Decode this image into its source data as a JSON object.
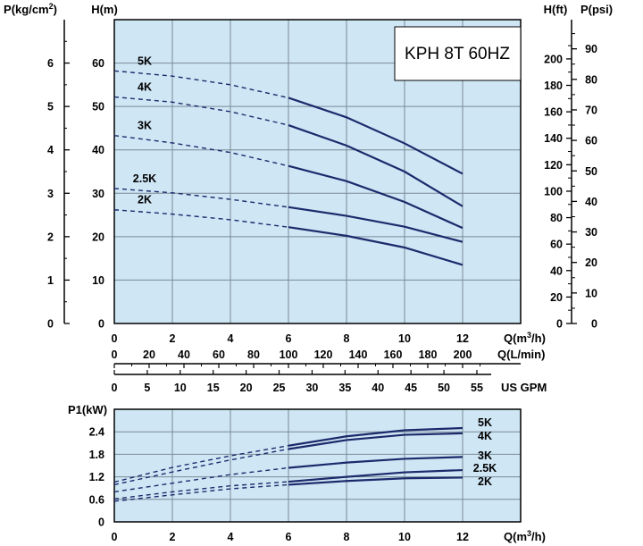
{
  "chart_data": [
    {
      "type": "line",
      "title": "KPH 8T 60HZ",
      "grid": true,
      "x": {
        "label": "Q(m³/h)",
        "range": [
          0,
          14
        ],
        "ticks": [
          0,
          2,
          4,
          6,
          8,
          10,
          12
        ]
      },
      "secondary_x": [
        {
          "label": "Q(L/min)",
          "ticks": [
            0,
            20,
            40,
            60,
            80,
            100,
            120,
            140,
            160,
            180,
            200
          ]
        },
        {
          "label": "US GPM",
          "ticks": [
            0,
            5,
            10,
            15,
            20,
            25,
            30,
            35,
            40,
            45,
            50,
            55
          ]
        }
      ],
      "y_left_outer": {
        "label": "P(kg/cm²)",
        "ticks": [
          0,
          1,
          2,
          3,
          4,
          5,
          6
        ]
      },
      "y_left": {
        "label": "H(m)",
        "range": [
          0,
          70
        ],
        "ticks": [
          0,
          10,
          20,
          30,
          40,
          50,
          60
        ]
      },
      "y_right": {
        "label": "H(ft)",
        "ticks": [
          0,
          20,
          40,
          60,
          80,
          100,
          120,
          140,
          160,
          180,
          200
        ]
      },
      "y_right_outer": {
        "label": "P(psi)",
        "ticks": [
          0,
          10,
          20,
          30,
          40,
          50,
          60,
          70,
          80,
          90
        ]
      },
      "series": [
        {
          "name": "5K",
          "dashed_x": [
            0,
            2,
            4,
            6
          ],
          "dashed_y": [
            58.2,
            57.0,
            55.0,
            52.0
          ],
          "solid_x": [
            6,
            8,
            10,
            12
          ],
          "solid_y": [
            52.0,
            47.5,
            41.5,
            34.5
          ]
        },
        {
          "name": "4K",
          "dashed_x": [
            0,
            2,
            4,
            6
          ],
          "dashed_y": [
            52.2,
            51.0,
            48.8,
            45.7
          ],
          "solid_x": [
            6,
            8,
            10,
            12
          ],
          "solid_y": [
            45.7,
            41.0,
            35.0,
            27.0
          ]
        },
        {
          "name": "3K",
          "dashed_x": [
            0,
            2,
            4,
            6
          ],
          "dashed_y": [
            43.3,
            41.6,
            39.4,
            36.3
          ],
          "solid_x": [
            6,
            8,
            10,
            12
          ],
          "solid_y": [
            36.3,
            32.8,
            28.0,
            22.0
          ]
        },
        {
          "name": "2.5K",
          "dashed_x": [
            0,
            2,
            4,
            6
          ],
          "dashed_y": [
            31.1,
            30.1,
            28.6,
            26.8
          ],
          "solid_x": [
            6,
            8,
            10,
            12
          ],
          "solid_y": [
            26.8,
            24.8,
            22.3,
            18.8
          ]
        },
        {
          "name": "2K",
          "dashed_x": [
            0,
            2,
            4,
            6
          ],
          "dashed_y": [
            26.2,
            25.2,
            23.9,
            22.2
          ],
          "solid_x": [
            6,
            8,
            10,
            12
          ],
          "solid_y": [
            22.2,
            20.2,
            17.5,
            13.5
          ]
        }
      ]
    },
    {
      "type": "line",
      "grid": true,
      "x": {
        "label": "Q(m³/h)",
        "range": [
          0,
          14
        ],
        "ticks": [
          0,
          2,
          4,
          6,
          8,
          10,
          12
        ]
      },
      "y": {
        "label": "P1(kW)",
        "range": [
          0,
          3.0
        ],
        "ticks": [
          0,
          0.6,
          1.2,
          1.8,
          2.4
        ]
      },
      "series": [
        {
          "name": "5K",
          "dashed_x": [
            0,
            2,
            4,
            6
          ],
          "dashed_y": [
            1.06,
            1.45,
            1.76,
            2.03
          ],
          "solid_x": [
            6,
            8,
            10,
            12
          ],
          "solid_y": [
            2.03,
            2.28,
            2.44,
            2.5
          ]
        },
        {
          "name": "4K",
          "dashed_x": [
            0,
            2,
            4,
            6
          ],
          "dashed_y": [
            0.99,
            1.33,
            1.65,
            1.94
          ],
          "solid_x": [
            6,
            8,
            10,
            12
          ],
          "solid_y": [
            1.94,
            2.18,
            2.32,
            2.36
          ]
        },
        {
          "name": "3K",
          "dashed_x": [
            0,
            2,
            4,
            6
          ],
          "dashed_y": [
            0.8,
            1.03,
            1.26,
            1.44
          ],
          "solid_x": [
            6,
            8,
            10,
            12
          ],
          "solid_y": [
            1.44,
            1.58,
            1.68,
            1.73
          ]
        },
        {
          "name": "2.5K",
          "dashed_x": [
            0,
            2,
            4,
            6
          ],
          "dashed_y": [
            0.61,
            0.8,
            0.96,
            1.07
          ],
          "solid_x": [
            6,
            8,
            10,
            12
          ],
          "solid_y": [
            1.07,
            1.2,
            1.32,
            1.38
          ]
        },
        {
          "name": "2K",
          "dashed_x": [
            0,
            2,
            4,
            6
          ],
          "dashed_y": [
            0.55,
            0.72,
            0.88,
            0.99
          ],
          "solid_x": [
            6,
            8,
            10,
            12
          ],
          "solid_y": [
            0.99,
            1.09,
            1.16,
            1.18
          ]
        }
      ]
    }
  ],
  "colors": {
    "plot_bg": "#cfe6f5",
    "grid": "#7a8a96",
    "curve": "#1c2a6b"
  }
}
